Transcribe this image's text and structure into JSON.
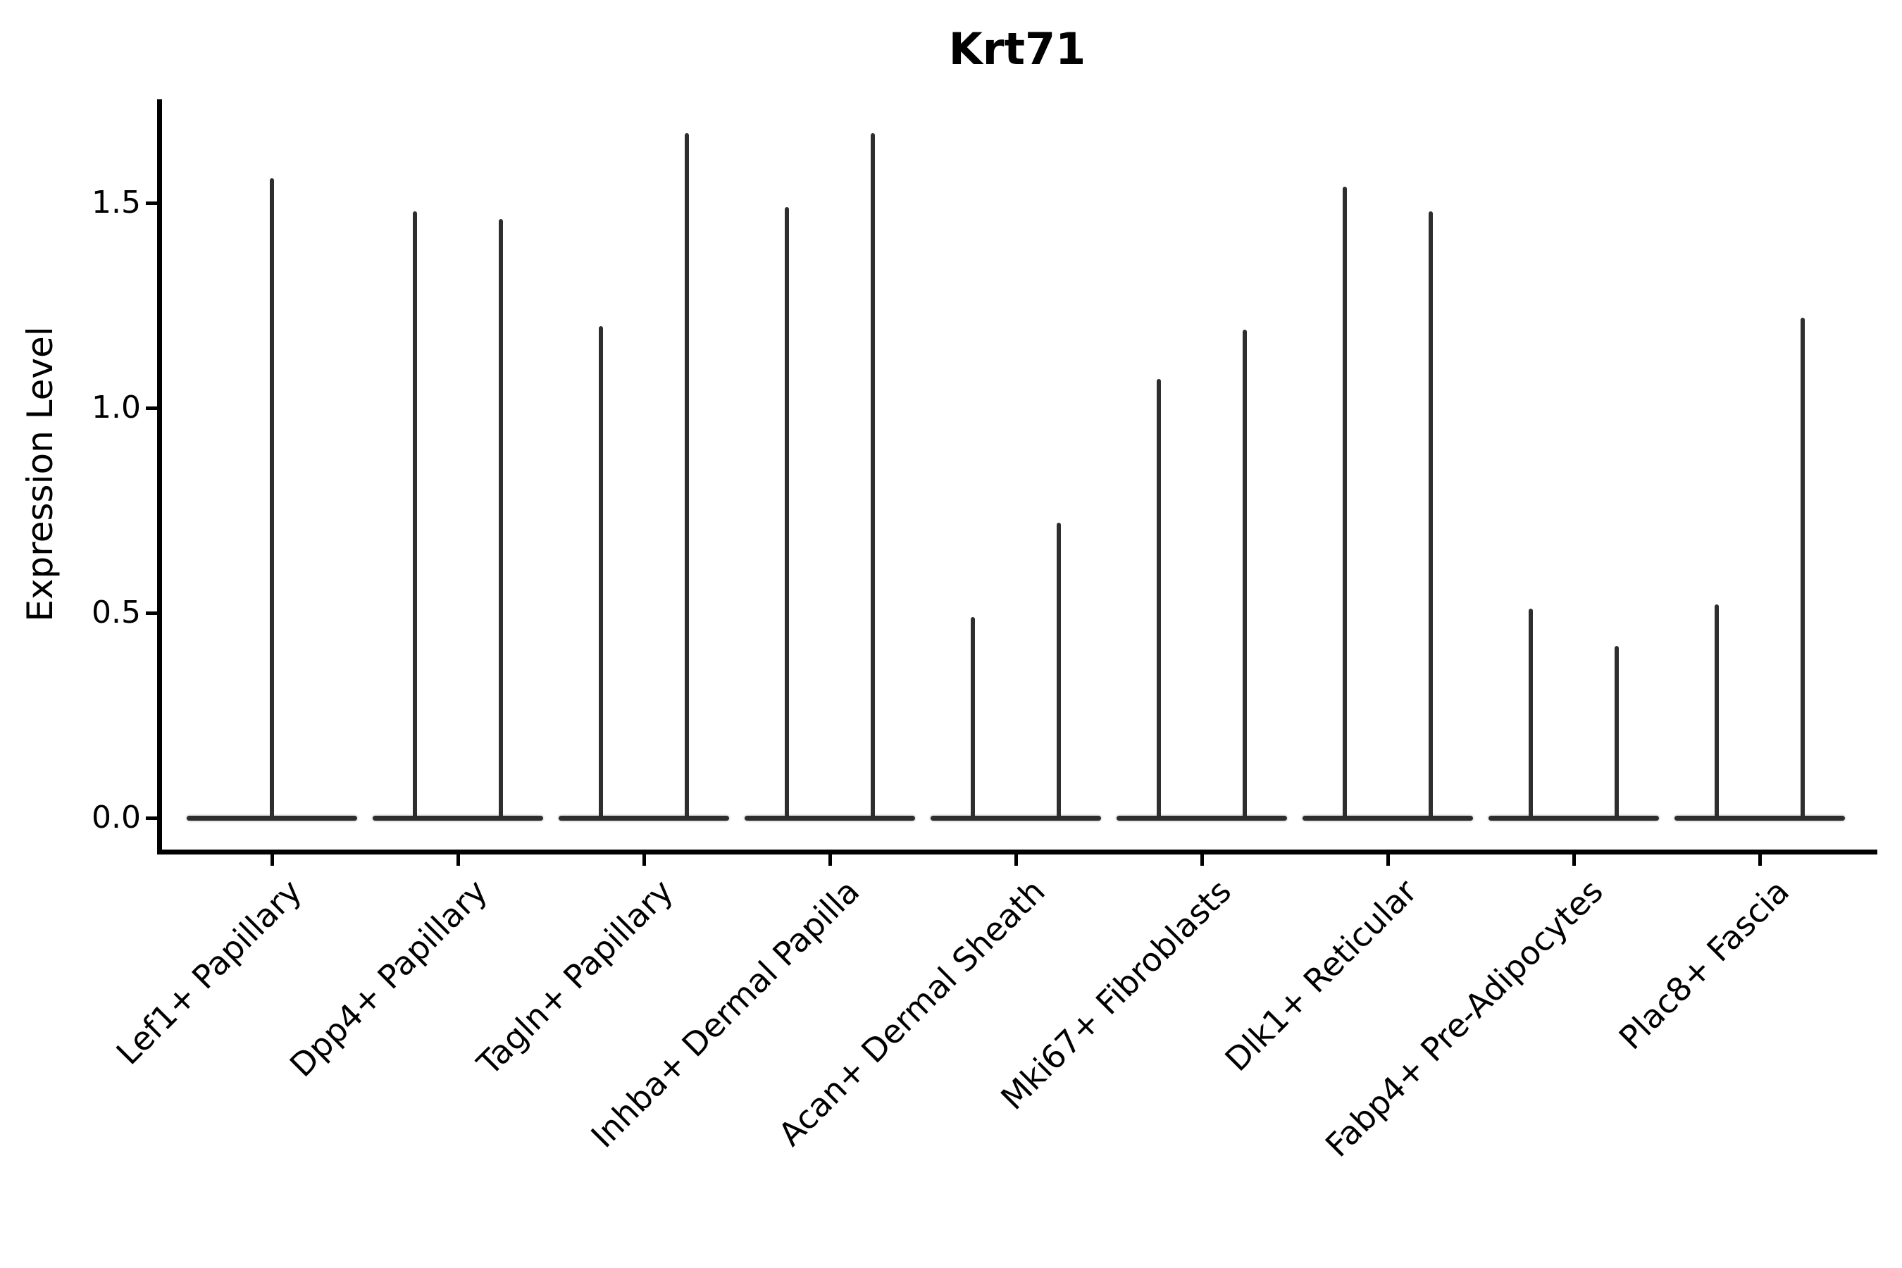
{
  "figure": {
    "title": "Krt71"
  },
  "y_axis": {
    "label": "Expression Level",
    "ticks": [
      {
        "label": "0.0",
        "value": 0.0
      },
      {
        "label": "0.5",
        "value": 0.5
      },
      {
        "label": "1.0",
        "value": 1.0
      },
      {
        "label": "1.5",
        "value": 1.5
      }
    ]
  },
  "x_axis": {
    "categories": [
      "Lef1+ Papillary",
      "Dpp4+ Papillary",
      "Tagln+ Papillary",
      "Inhba+ Dermal Papilla",
      "Acan+ Dermal Sheath",
      "Mki67+ Fibroblasts",
      "Dlk1+ Reticular",
      "Fabp4+ Pre-Adipocytes",
      "Plac8+ Fascia"
    ]
  },
  "chart_data": {
    "type": "violin",
    "title": "Krt71",
    "xlabel": "",
    "ylabel": "Expression Level",
    "ylim": [
      -0.08,
      1.75
    ],
    "yticks": [
      0.0,
      0.5,
      1.0,
      1.5
    ],
    "grid": false,
    "legend": "none",
    "style": "unfilled thin violins: wide flat base at 0 with narrow vertical spikes up to the max expression value",
    "categories": [
      "Lef1+ Papillary",
      "Dpp4+ Papillary",
      "Tagln+ Papillary",
      "Inhba+ Dermal Papilla",
      "Acan+ Dermal Sheath",
      "Mki67+ Fibroblasts",
      "Dlk1+ Reticular",
      "Fabp4+ Pre-Adipocytes",
      "Plac8+ Fascia"
    ],
    "violins": [
      {
        "category": "Lef1+ Papillary",
        "spikes": [
          {
            "offset": 0.0,
            "max": 1.56
          }
        ]
      },
      {
        "category": "Dpp4+ Papillary",
        "spikes": [
          {
            "offset": -0.23,
            "max": 1.48
          },
          {
            "offset": 0.23,
            "max": 1.46
          }
        ]
      },
      {
        "category": "Tagln+ Papillary",
        "spikes": [
          {
            "offset": -0.23,
            "max": 1.2
          },
          {
            "offset": 0.23,
            "max": 1.67
          }
        ]
      },
      {
        "category": "Inhba+ Dermal Papilla",
        "spikes": [
          {
            "offset": -0.23,
            "max": 1.49
          },
          {
            "offset": 0.23,
            "max": 1.67
          }
        ]
      },
      {
        "category": "Acan+ Dermal Sheath",
        "spikes": [
          {
            "offset": -0.23,
            "max": 0.49
          },
          {
            "offset": 0.23,
            "max": 0.72
          }
        ]
      },
      {
        "category": "Mki67+ Fibroblasts",
        "spikes": [
          {
            "offset": -0.23,
            "max": 1.07
          },
          {
            "offset": 0.23,
            "max": 1.19
          }
        ]
      },
      {
        "category": "Dlk1+ Reticular",
        "spikes": [
          {
            "offset": -0.23,
            "max": 1.54
          },
          {
            "offset": 0.23,
            "max": 1.48
          }
        ]
      },
      {
        "category": "Fabp4+ Pre-Adipocytes",
        "spikes": [
          {
            "offset": -0.23,
            "max": 0.51
          },
          {
            "offset": 0.23,
            "max": 0.42
          }
        ]
      },
      {
        "category": "Plac8+ Fascia",
        "spikes": [
          {
            "offset": -0.23,
            "max": 0.52
          },
          {
            "offset": 0.23,
            "max": 1.22
          }
        ]
      }
    ],
    "base_halfwidth": 0.46,
    "colors": {
      "violin": "#2e2e2e",
      "spine": "#000000",
      "text": "#000000",
      "background": "#ffffff"
    }
  }
}
